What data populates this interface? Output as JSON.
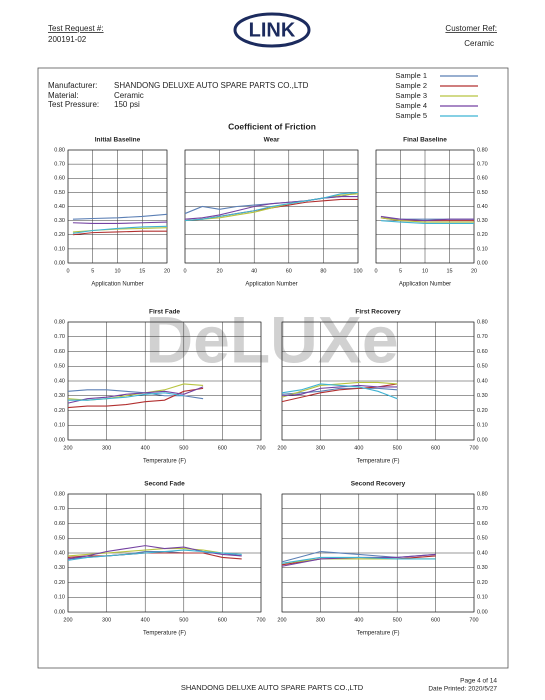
{
  "header": {
    "test_request_label": "Test Request #:",
    "test_request": "200191-02",
    "logo": "LINK",
    "customer_ref_label": "Customer Ref:",
    "customer_ref": "Ceramic"
  },
  "info": {
    "manufacturer_label": "Manufacturer:",
    "manufacturer": "SHANDONG DELUXE AUTO SPARE PARTS CO.,LTD",
    "material_label": "Material:",
    "material": "Ceramic",
    "pressure_label": "Test Pressure:",
    "pressure": "150 psi"
  },
  "watermark": "DeLUXe",
  "chart_data": {
    "type": "line",
    "title": "Coefficient of Friction",
    "grid": true,
    "samples": [
      {
        "name": "Sample 1",
        "color": "#5b7fb5"
      },
      {
        "name": "Sample 2",
        "color": "#b23030"
      },
      {
        "name": "Sample 3",
        "color": "#b8c440"
      },
      {
        "name": "Sample 4",
        "color": "#7442a2"
      },
      {
        "name": "Sample 5",
        "color": "#3fb3d3"
      }
    ],
    "charts": [
      {
        "type": "line",
        "title": "Initial Baseline",
        "x_label": "Application Number",
        "ytick_side": "left",
        "xlim": [
          0,
          20
        ],
        "xticks": [
          0,
          5,
          10,
          15,
          20
        ],
        "ylim": [
          0,
          0.8
        ],
        "yticks": [
          {
            "value": 0,
            "label": "0.00"
          },
          {
            "value": 0.1,
            "label": "0.10"
          },
          {
            "value": 0.2,
            "label": "0.20"
          },
          {
            "value": 0.3,
            "label": "0.30"
          },
          {
            "value": 0.4,
            "label": "0.40"
          },
          {
            "value": 0.5,
            "label": "0.50"
          },
          {
            "value": 0.6,
            "label": "0.60"
          },
          {
            "value": 0.7,
            "label": "0.70"
          },
          {
            "value": 0.8,
            "label": "0.80"
          }
        ],
        "x": [
          1,
          5,
          10,
          15,
          20
        ],
        "series": [
          {
            "values": [
              0.31,
              0.315,
              0.32,
              0.33,
              0.345
            ]
          },
          {
            "values": [
              0.2,
              0.215,
              0.22,
              0.225,
              0.225
            ]
          },
          {
            "values": [
              0.22,
              0.23,
              0.24,
              0.245,
              0.25
            ]
          },
          {
            "values": [
              0.285,
              0.28,
              0.28,
              0.285,
              0.29
            ]
          },
          {
            "values": [
              0.21,
              0.23,
              0.245,
              0.255,
              0.26
            ]
          }
        ]
      },
      {
        "type": "line",
        "title": "Wear",
        "x_label": "Application Number",
        "ytick_side": "none",
        "xlim": [
          0,
          100
        ],
        "xticks": [
          0,
          20,
          40,
          60,
          80,
          100
        ],
        "ylim": [
          0,
          0.8
        ],
        "yticks": [
          0,
          0.1,
          0.2,
          0.3,
          0.4,
          0.5,
          0.6,
          0.7,
          0.8
        ],
        "x": [
          0,
          10,
          20,
          30,
          40,
          50,
          60,
          70,
          80,
          90,
          100
        ],
        "series": [
          {
            "values": [
              0.35,
              0.4,
              0.38,
              0.4,
              0.41,
              0.42,
              0.43,
              0.44,
              0.46,
              0.47,
              0.5
            ]
          },
          {
            "values": [
              0.3,
              0.31,
              0.33,
              0.35,
              0.37,
              0.39,
              0.41,
              0.43,
              0.44,
              0.45,
              0.45
            ]
          },
          {
            "values": [
              0.3,
              0.31,
              0.32,
              0.34,
              0.36,
              0.39,
              0.42,
              0.44,
              0.46,
              0.48,
              0.49
            ]
          },
          {
            "values": [
              0.31,
              0.32,
              0.34,
              0.37,
              0.4,
              0.42,
              0.43,
              0.44,
              0.46,
              0.47,
              0.47
            ]
          },
          {
            "values": [
              0.3,
              0.31,
              0.33,
              0.35,
              0.37,
              0.4,
              0.42,
              0.44,
              0.46,
              0.49,
              0.5
            ]
          }
        ]
      },
      {
        "type": "line",
        "title": "Final Baseline",
        "x_label": "Application Number",
        "ytick_side": "right",
        "xlim": [
          0,
          20
        ],
        "xticks": [
          0,
          5,
          10,
          15,
          20
        ],
        "ylim": [
          0,
          0.8
        ],
        "yticks": [
          {
            "value": 0,
            "label": "0.00"
          },
          {
            "value": 0.1,
            "label": "0.10"
          },
          {
            "value": 0.2,
            "label": "0.20"
          },
          {
            "value": 0.3,
            "label": "0.30"
          },
          {
            "value": 0.4,
            "label": "0.40"
          },
          {
            "value": 0.5,
            "label": "0.50"
          },
          {
            "value": 0.6,
            "label": "0.60"
          },
          {
            "value": 0.7,
            "label": "0.70"
          },
          {
            "value": 0.8,
            "label": "0.80"
          }
        ],
        "x": [
          1,
          5,
          10,
          15,
          20
        ],
        "series": [
          {
            "values": [
              0.32,
              0.31,
              0.31,
              0.31,
              0.31
            ]
          },
          {
            "values": [
              0.32,
              0.3,
              0.3,
              0.3,
              0.3
            ]
          },
          {
            "values": [
              0.32,
              0.3,
              0.29,
              0.29,
              0.29
            ]
          },
          {
            "values": [
              0.33,
              0.31,
              0.3,
              0.31,
              0.31
            ]
          },
          {
            "values": [
              0.3,
              0.29,
              0.28,
              0.28,
              0.28
            ]
          }
        ]
      },
      {
        "type": "line",
        "title": "First Fade",
        "x_label": "Temperature (F)",
        "ytick_side": "left",
        "xlim": [
          200,
          700
        ],
        "xticks": [
          200,
          300,
          400,
          500,
          600,
          700
        ],
        "ylim": [
          0,
          0.8
        ],
        "yticks": [
          {
            "value": 0,
            "label": "0.00"
          },
          {
            "value": 0.1,
            "label": "0.10"
          },
          {
            "value": 0.2,
            "label": "0.20"
          },
          {
            "value": 0.3,
            "label": "0.30"
          },
          {
            "value": 0.4,
            "label": "0.40"
          },
          {
            "value": 0.5,
            "label": "0.50"
          },
          {
            "value": 0.6,
            "label": "0.60"
          },
          {
            "value": 0.7,
            "label": "0.70"
          },
          {
            "value": 0.8,
            "label": "0.80"
          }
        ],
        "x": [
          200,
          250,
          300,
          350,
          400,
          450,
          500,
          550
        ],
        "series": [
          {
            "values": [
              0.33,
              0.34,
              0.34,
              0.33,
              0.32,
              0.3,
              0.3,
              0.28
            ]
          },
          {
            "values": [
              0.22,
              0.23,
              0.23,
              0.24,
              0.26,
              0.27,
              0.33,
              0.35
            ]
          },
          {
            "values": [
              0.28,
              0.27,
              0.28,
              0.3,
              0.32,
              0.34,
              0.38,
              0.37
            ]
          },
          {
            "values": [
              0.25,
              0.28,
              0.29,
              0.31,
              0.32,
              0.33,
              0.31,
              0.36
            ]
          },
          {
            "values": [
              0.27,
              0.27,
              0.28,
              0.29,
              0.31,
              0.32,
              0.3,
              null
            ]
          }
        ]
      },
      {
        "type": "line",
        "title": "First Recovery",
        "x_label": "Temperature (F)",
        "ytick_side": "right",
        "xlim": [
          200,
          700
        ],
        "xticks": [
          200,
          300,
          400,
          500,
          600,
          700
        ],
        "ylim": [
          0,
          0.8
        ],
        "yticks": [
          {
            "value": 0,
            "label": "0.00"
          },
          {
            "value": 0.1,
            "label": "0.10"
          },
          {
            "value": 0.2,
            "label": "0.20"
          },
          {
            "value": 0.3,
            "label": "0.30"
          },
          {
            "value": 0.4,
            "label": "0.40"
          },
          {
            "value": 0.5,
            "label": "0.50"
          },
          {
            "value": 0.6,
            "label": "0.60"
          },
          {
            "value": 0.7,
            "label": "0.70"
          },
          {
            "value": 0.8,
            "label": "0.80"
          }
        ],
        "x": [
          200,
          250,
          300,
          350,
          400,
          450,
          500
        ],
        "series": [
          {
            "values": [
              0.31,
              0.32,
              0.33,
              0.35,
              0.35,
              0.35,
              0.34
            ]
          },
          {
            "values": [
              0.26,
              0.29,
              0.32,
              0.34,
              0.35,
              0.36,
              0.38
            ]
          },
          {
            "values": [
              0.29,
              0.33,
              0.37,
              0.38,
              0.39,
              0.39,
              0.38
            ]
          },
          {
            "values": [
              0.3,
              0.31,
              0.35,
              0.36,
              0.37,
              0.36,
              0.36
            ]
          },
          {
            "values": [
              0.32,
              0.34,
              0.38,
              0.37,
              0.36,
              0.33,
              0.28
            ]
          }
        ]
      },
      {
        "type": "line",
        "title": "Second Fade",
        "x_label": "Temperature (F)",
        "ytick_side": "left",
        "xlim": [
          200,
          700
        ],
        "xticks": [
          200,
          300,
          400,
          500,
          600,
          700
        ],
        "ylim": [
          0,
          0.8
        ],
        "yticks": [
          {
            "value": 0,
            "label": "0.00"
          },
          {
            "value": 0.1,
            "label": "0.10"
          },
          {
            "value": 0.2,
            "label": "0.20"
          },
          {
            "value": 0.3,
            "label": "0.30"
          },
          {
            "value": 0.4,
            "label": "0.40"
          },
          {
            "value": 0.5,
            "label": "0.50"
          },
          {
            "value": 0.6,
            "label": "0.60"
          },
          {
            "value": 0.7,
            "label": "0.70"
          },
          {
            "value": 0.8,
            "label": "0.80"
          }
        ],
        "x": [
          200,
          250,
          300,
          350,
          400,
          450,
          500,
          550,
          600,
          650
        ],
        "series": [
          {
            "values": [
              0.36,
              0.37,
              0.38,
              0.39,
              0.41,
              0.41,
              0.4,
              0.4,
              0.4,
              0.38
            ]
          },
          {
            "values": [
              0.37,
              0.38,
              0.38,
              0.39,
              0.4,
              0.4,
              0.4,
              0.4,
              0.37,
              0.36
            ]
          },
          {
            "values": [
              0.38,
              0.39,
              0.4,
              0.41,
              0.42,
              0.43,
              0.43,
              0.42,
              0.4,
              null
            ]
          },
          {
            "values": [
              0.36,
              0.38,
              0.41,
              0.43,
              0.45,
              0.43,
              0.44,
              0.41,
              0.39,
              0.38
            ]
          },
          {
            "values": [
              0.35,
              0.37,
              0.38,
              0.39,
              0.4,
              0.41,
              0.42,
              0.41,
              0.4,
              0.39
            ]
          }
        ]
      },
      {
        "type": "line",
        "title": "Second Recovery",
        "x_label": "Temperature (F)",
        "ytick_side": "right",
        "xlim": [
          200,
          700
        ],
        "xticks": [
          200,
          300,
          400,
          500,
          600,
          700
        ],
        "ylim": [
          0,
          0.8
        ],
        "yticks": [
          {
            "value": 0,
            "label": "0.00"
          },
          {
            "value": 0.1,
            "label": "0.10"
          },
          {
            "value": 0.2,
            "label": "0.20"
          },
          {
            "value": 0.3,
            "label": "0.30"
          },
          {
            "value": 0.4,
            "label": "0.40"
          },
          {
            "value": 0.5,
            "label": "0.50"
          },
          {
            "value": 0.6,
            "label": "0.60"
          },
          {
            "value": 0.7,
            "label": "0.70"
          },
          {
            "value": 0.8,
            "label": "0.80"
          }
        ],
        "x": [
          200,
          300,
          400,
          500,
          600
        ],
        "series": [
          {
            "values": [
              0.34,
              0.41,
              0.39,
              0.37,
              0.39
            ]
          },
          {
            "values": [
              0.32,
              0.36,
              0.36,
              0.36,
              0.38
            ]
          },
          {
            "values": [
              0.33,
              0.36,
              0.36,
              0.36,
              0.36
            ]
          },
          {
            "values": [
              0.31,
              0.36,
              0.37,
              0.37,
              0.39
            ]
          },
          {
            "values": [
              0.33,
              0.37,
              0.37,
              0.36,
              0.36
            ]
          }
        ]
      }
    ]
  },
  "footer": {
    "company": "SHANDONG DELUXE AUTO SPARE PARTS CO.,LTD",
    "page": "Page 4 of 14",
    "date": "Date Printed: 2020/5/27"
  }
}
